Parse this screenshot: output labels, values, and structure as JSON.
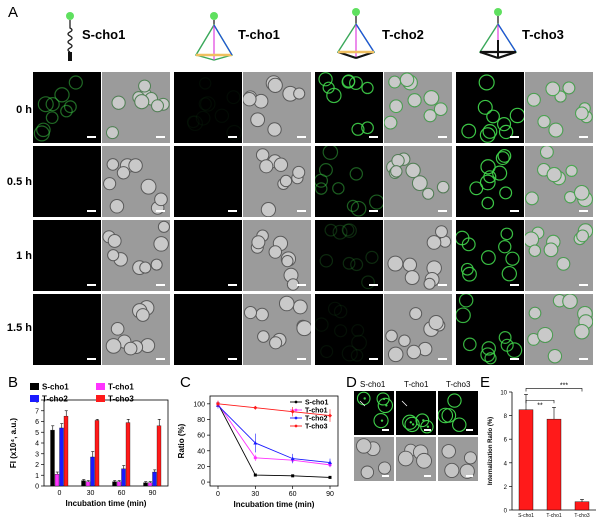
{
  "panels": {
    "A": "A",
    "B": "B",
    "C": "C",
    "D": "D",
    "E": "E"
  },
  "panelA": {
    "molecules": [
      "S-cho1",
      "T-cho1",
      "T-cho2",
      "T-cho3"
    ],
    "rows": [
      "0 h",
      "0.5 h",
      "1 h",
      "1.5 h"
    ],
    "fluor_level": [
      [
        0.5,
        0.05,
        0.9,
        0.95
      ],
      [
        0.0,
        0.0,
        0.45,
        0.95
      ],
      [
        0.0,
        0.0,
        0.2,
        0.9
      ],
      [
        0.0,
        0.0,
        0.08,
        0.85
      ]
    ]
  },
  "panelD": {
    "labels": [
      "S-cho1",
      "T-cho1",
      "T-cho3"
    ]
  },
  "colors": {
    "s_cho1": "#000000",
    "t_cho1": "#ff33ff",
    "t_cho2": "#1a1aff",
    "t_cho3": "#ff1a1a",
    "cell_green": "#3fd14a"
  },
  "chart_data": [
    {
      "type": "bar",
      "panel": "B",
      "ylabel": "FI (x10⁴, a.u.)",
      "xlabel": "Incubation time (min)",
      "categories": [
        "0",
        "30",
        "60",
        "90"
      ],
      "ylim": [
        0,
        8
      ],
      "yticks": [
        "0",
        "1",
        "2",
        "3",
        "4",
        "5",
        "6",
        "7",
        "8"
      ],
      "legend_placement": "top",
      "series": [
        {
          "name": "S-cho1",
          "values": [
            5.2,
            0.5,
            0.4,
            0.3
          ],
          "errors": [
            0.4,
            0.1,
            0.1,
            0.1
          ]
        },
        {
          "name": "T-cho1",
          "values": [
            1.1,
            0.4,
            0.4,
            0.3
          ],
          "errors": [
            0.2,
            0.1,
            0.1,
            0.1
          ]
        },
        {
          "name": "T-cho2",
          "values": [
            5.4,
            2.7,
            1.6,
            1.3
          ],
          "errors": [
            0.4,
            0.5,
            0.3,
            0.2
          ]
        },
        {
          "name": "T-cho3",
          "values": [
            6.5,
            6.1,
            5.9,
            5.6
          ],
          "errors": [
            0.5,
            0.1,
            0.3,
            0.6
          ]
        }
      ]
    },
    {
      "type": "line",
      "panel": "C",
      "ylabel": "Ratio (%)",
      "xlabel": "Incubation time (min)",
      "x": [
        0,
        30,
        60,
        90
      ],
      "xticks": [
        "0",
        "30",
        "60",
        "90"
      ],
      "ylim": [
        -5,
        110
      ],
      "yticks": [
        "0",
        "20",
        "40",
        "60",
        "80",
        "100"
      ],
      "legend_placement": "top-right",
      "series": [
        {
          "name": "S-cho1",
          "values": [
            100,
            9,
            8,
            6
          ],
          "errors": [
            3,
            1,
            1,
            1
          ]
        },
        {
          "name": "T-cho1",
          "values": [
            100,
            31,
            28,
            22
          ],
          "errors": [
            4,
            4,
            3,
            3
          ]
        },
        {
          "name": "T-cho2",
          "values": [
            98,
            50,
            30,
            25
          ],
          "errors": [
            4,
            12,
            6,
            5
          ]
        },
        {
          "name": "T-cho3",
          "values": [
            100,
            95,
            90,
            85
          ],
          "errors": [
            4,
            2,
            6,
            8
          ]
        }
      ]
    },
    {
      "type": "bar",
      "panel": "E",
      "ylabel": "Internalization Ratio (%)",
      "categories": [
        "S-cho1",
        "T-cho1",
        "T-cho3"
      ],
      "values": [
        8.5,
        7.7,
        0.7
      ],
      "errors": [
        1.3,
        1.0,
        0.2
      ],
      "ylim": [
        0,
        10
      ],
      "yticks": [
        "0",
        "2",
        "4",
        "6",
        "8",
        "10"
      ],
      "annotations": [
        "**",
        "***"
      ]
    }
  ]
}
